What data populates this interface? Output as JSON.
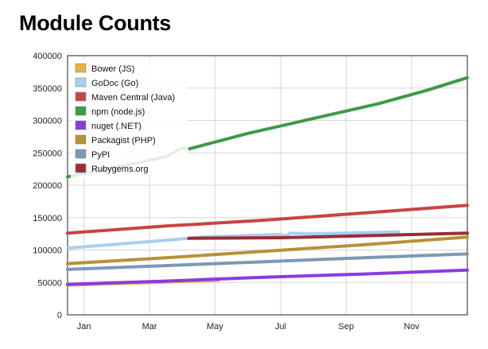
{
  "chart_data": {
    "type": "line",
    "title": "Module Counts",
    "xlabel": "",
    "ylabel": "",
    "x_ticks": [
      "Jan",
      "Mar",
      "May",
      "Jul",
      "Sep",
      "Nov"
    ],
    "x_range_months": [
      -0.5,
      11.7
    ],
    "ylim": [
      0,
      400000
    ],
    "y_ticks": [
      0,
      50000,
      100000,
      150000,
      200000,
      250000,
      300000,
      350000,
      400000
    ],
    "grid": true,
    "legend_position": "top-left",
    "series": [
      {
        "name": "Bower (JS)",
        "color": "#e8b23a",
        "points": [
          [
            -0.5,
            46000
          ],
          [
            4.1,
            53000
          ]
        ]
      },
      {
        "name": "GoDoc (Go)",
        "color": "#a9cff0",
        "points": [
          [
            -0.5,
            103000
          ],
          [
            2.5,
            115000
          ],
          [
            3.6,
            120000
          ],
          [
            6.0,
            124000
          ],
          [
            6.15,
            121000
          ],
          [
            6.3,
            126000
          ],
          [
            7.0,
            125000
          ],
          [
            9.6,
            128000
          ]
        ]
      },
      {
        "name": "Maven Central (Java)",
        "color": "#c84444",
        "points": [
          [
            -0.5,
            126000
          ],
          [
            2.5,
            137000
          ],
          [
            5.5,
            146000
          ],
          [
            8.5,
            157000
          ],
          [
            11.7,
            169000
          ]
        ]
      },
      {
        "name": "npm (node.js)",
        "color": "#3d9a46",
        "points": [
          [
            -0.5,
            213000
          ],
          [
            0.5,
            223000
          ],
          [
            1.5,
            233000
          ],
          [
            2.5,
            244000
          ],
          [
            3.0,
            258000
          ],
          [
            3.2,
            256000
          ],
          [
            5.0,
            280000
          ],
          [
            7.0,
            303000
          ],
          [
            9.0,
            326000
          ],
          [
            10.5,
            347000
          ],
          [
            11.7,
            366000
          ]
        ]
      },
      {
        "name": "nuget (.NET)",
        "color": "#8a3be0",
        "points": [
          [
            -0.5,
            47000
          ],
          [
            2.5,
            52000
          ],
          [
            5.5,
            58000
          ],
          [
            8.5,
            63000
          ],
          [
            11.7,
            69000
          ]
        ]
      },
      {
        "name": "Packagist (PHP)",
        "color": "#b89038",
        "points": [
          [
            -0.5,
            79000
          ],
          [
            2.5,
            88000
          ],
          [
            5.5,
            98000
          ],
          [
            8.5,
            108000
          ],
          [
            11.7,
            120000
          ]
        ]
      },
      {
        "name": "PyPI",
        "color": "#7a99b4",
        "points": [
          [
            -0.5,
            70000
          ],
          [
            2.5,
            76000
          ],
          [
            5.5,
            82000
          ],
          [
            8.5,
            88000
          ],
          [
            11.7,
            94000
          ]
        ]
      },
      {
        "name": "Rubygems.org",
        "color": "#9b2d35",
        "points": [
          [
            3.2,
            118000
          ],
          [
            6.0,
            119000
          ],
          [
            8.5,
            122000
          ],
          [
            11.7,
            126000
          ]
        ]
      }
    ]
  }
}
